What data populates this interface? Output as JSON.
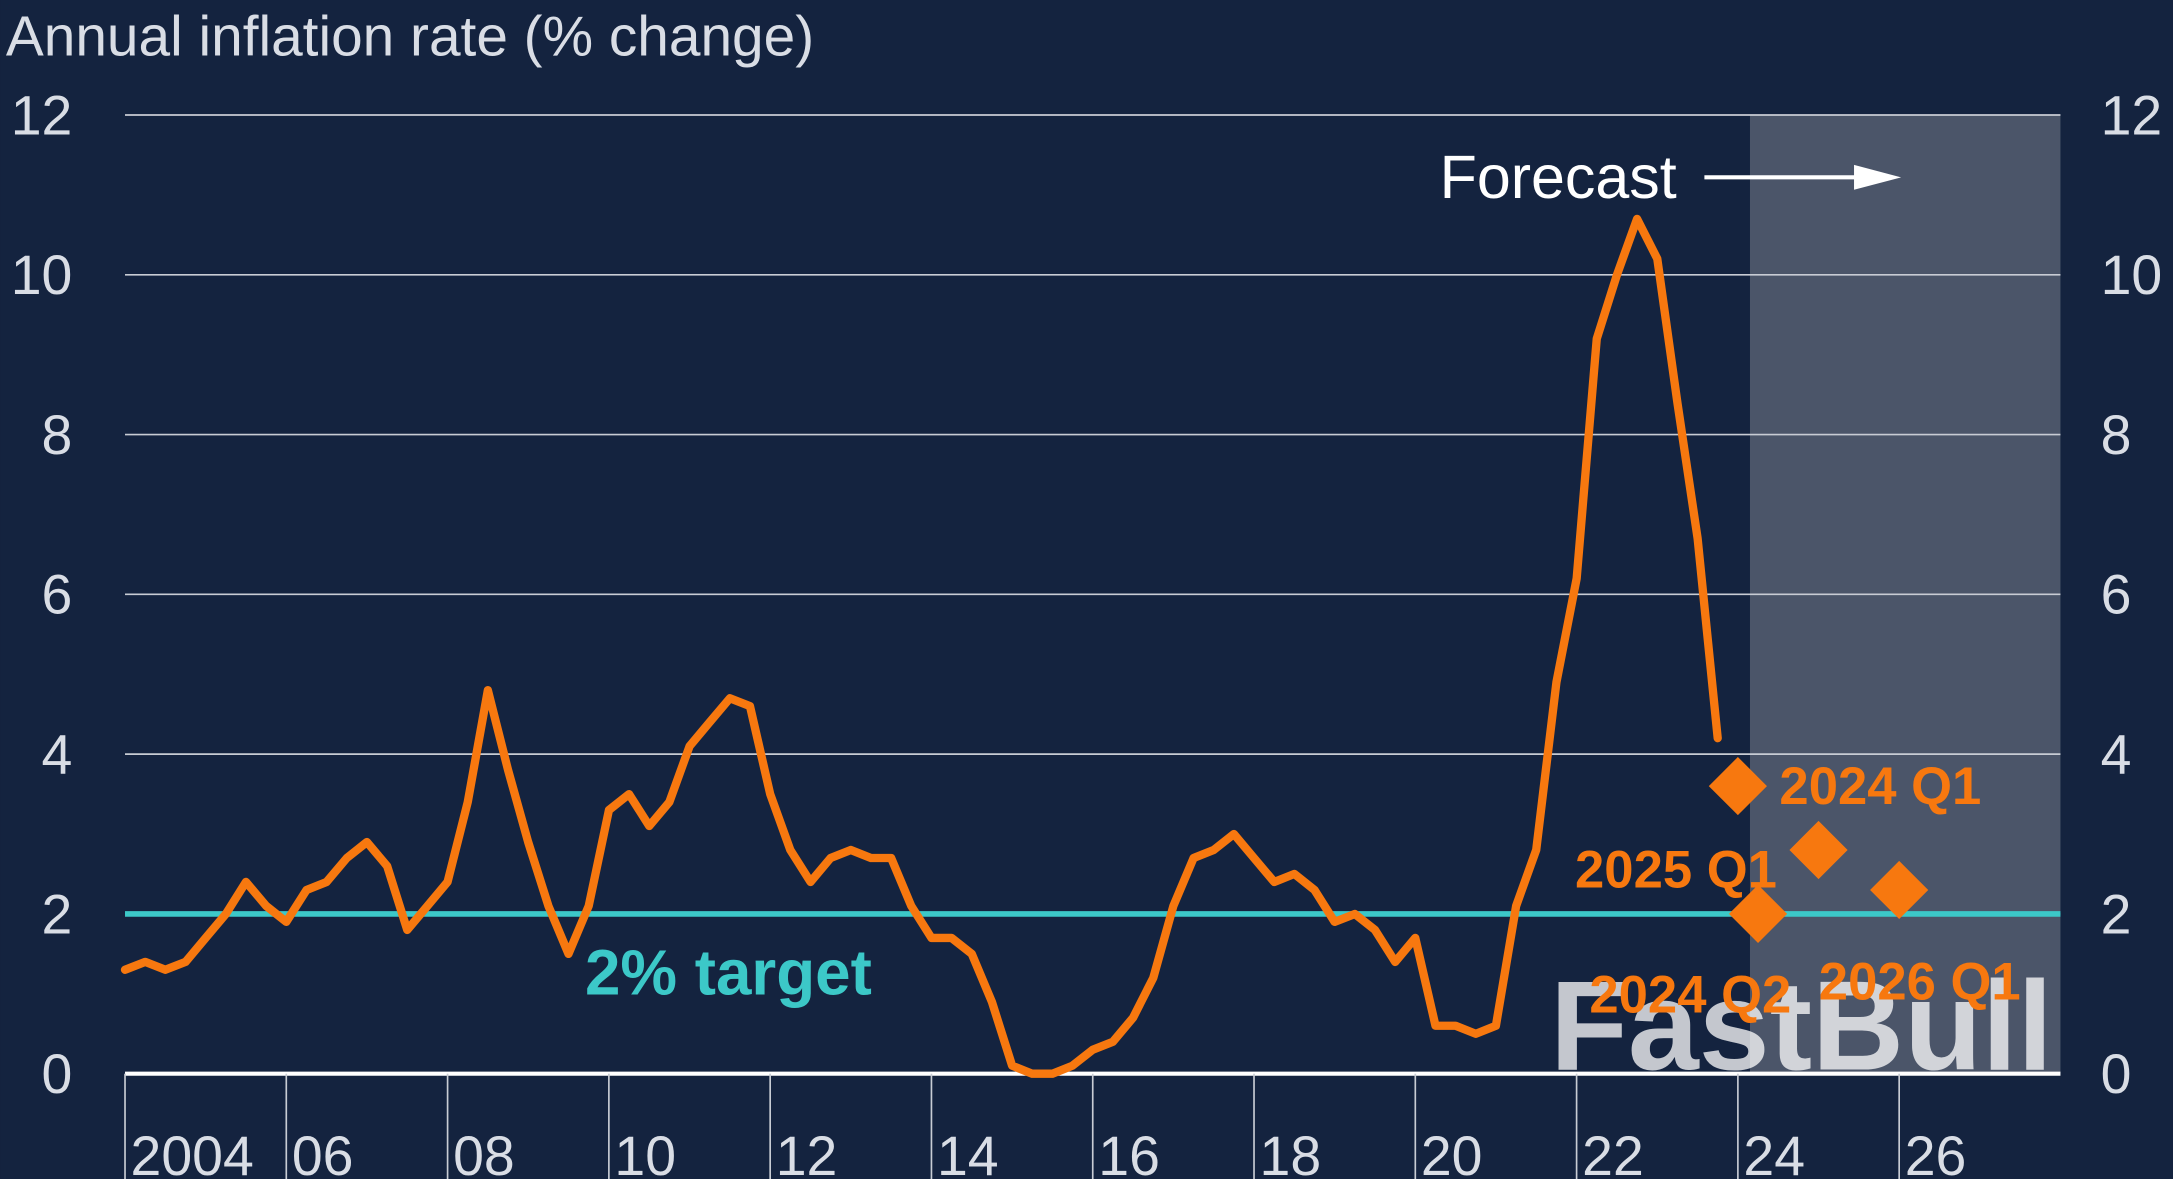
{
  "chart_data": {
    "type": "line",
    "title": "Annual inflation rate (% change)",
    "xlim": [
      2004,
      2028
    ],
    "xticks": [
      2004,
      {
        "value": 2006,
        "label": "06"
      },
      {
        "value": 2008,
        "label": "08"
      },
      {
        "value": 2010,
        "label": "10"
      },
      {
        "value": 2012,
        "label": "12"
      },
      {
        "value": 2014,
        "label": "14"
      },
      {
        "value": 2016,
        "label": "16"
      },
      {
        "value": 2018,
        "label": "18"
      },
      {
        "value": 2020,
        "label": "20"
      },
      {
        "value": 2022,
        "label": "22"
      },
      {
        "value": 2024,
        "label": "24"
      },
      {
        "value": 2026,
        "label": "26"
      }
    ],
    "ylim": [
      0,
      12
    ],
    "yticks": [
      0,
      2,
      4,
      6,
      8,
      10,
      12
    ],
    "y2lim": [
      0,
      12
    ],
    "y2ticks": [
      0,
      2,
      4,
      6,
      8,
      10,
      12
    ],
    "grid": true,
    "line": {
      "color": "#f7780f",
      "x": [
        2004,
        2004.25,
        2004.5,
        2004.75,
        2005,
        2005.25,
        2005.5,
        2005.75,
        2006,
        2006.25,
        2006.5,
        2006.75,
        2007,
        2007.25,
        2007.5,
        2007.75,
        2008,
        2008.25,
        2008.5,
        2008.75,
        2009,
        2009.25,
        2009.5,
        2009.75,
        2010,
        2010.25,
        2010.5,
        2010.75,
        2011,
        2011.25,
        2011.5,
        2011.75,
        2012,
        2012.25,
        2012.5,
        2012.75,
        2013,
        2013.25,
        2013.5,
        2013.75,
        2014,
        2014.25,
        2014.5,
        2014.75,
        2015,
        2015.25,
        2015.5,
        2015.75,
        2016,
        2016.25,
        2016.5,
        2016.75,
        2017,
        2017.25,
        2017.5,
        2017.75,
        2018,
        2018.25,
        2018.5,
        2018.75,
        2019,
        2019.25,
        2019.5,
        2019.75,
        2020,
        2020.25,
        2020.5,
        2020.75,
        2021,
        2021.25,
        2021.5,
        2021.75,
        2022,
        2022.25,
        2022.5,
        2022.75,
        2023,
        2023.25,
        2023.5,
        2023.75
      ],
      "values": [
        1.3,
        1.4,
        1.3,
        1.4,
        1.7,
        2.0,
        2.4,
        2.1,
        1.9,
        2.3,
        2.4,
        2.7,
        2.9,
        2.6,
        1.8,
        2.1,
        2.4,
        3.4,
        4.8,
        3.8,
        2.9,
        2.1,
        1.5,
        2.1,
        3.3,
        3.5,
        3.1,
        3.4,
        4.1,
        4.4,
        4.7,
        4.6,
        3.5,
        2.8,
        2.4,
        2.7,
        2.8,
        2.7,
        2.7,
        2.1,
        1.7,
        1.7,
        1.5,
        0.9,
        0.1,
        0.0,
        0.0,
        0.1,
        0.3,
        0.4,
        0.7,
        1.2,
        2.1,
        2.7,
        2.8,
        3.0,
        2.7,
        2.4,
        2.5,
        2.3,
        1.9,
        2.0,
        1.8,
        1.4,
        1.7,
        0.6,
        0.6,
        0.5,
        0.6,
        2.1,
        2.8,
        4.9,
        6.2,
        9.2,
        10.0,
        10.7,
        10.2,
        8.4,
        6.7,
        4.2
      ]
    },
    "forecast": {
      "color": "#f7780f",
      "x": [
        2024,
        2024.25,
        2025,
        2026
      ],
      "values": [
        3.6,
        2.0,
        2.8,
        2.3
      ],
      "labels": [
        "2024 Q1",
        "2024 Q2",
        "2025 Q1",
        "2026 Q1"
      ]
    },
    "forecast_region": {
      "label": "Forecast",
      "start": 2024.15
    },
    "target": {
      "value": 2,
      "label": "2% target",
      "color": "#3cc8c8"
    },
    "watermark": "FastBull"
  }
}
